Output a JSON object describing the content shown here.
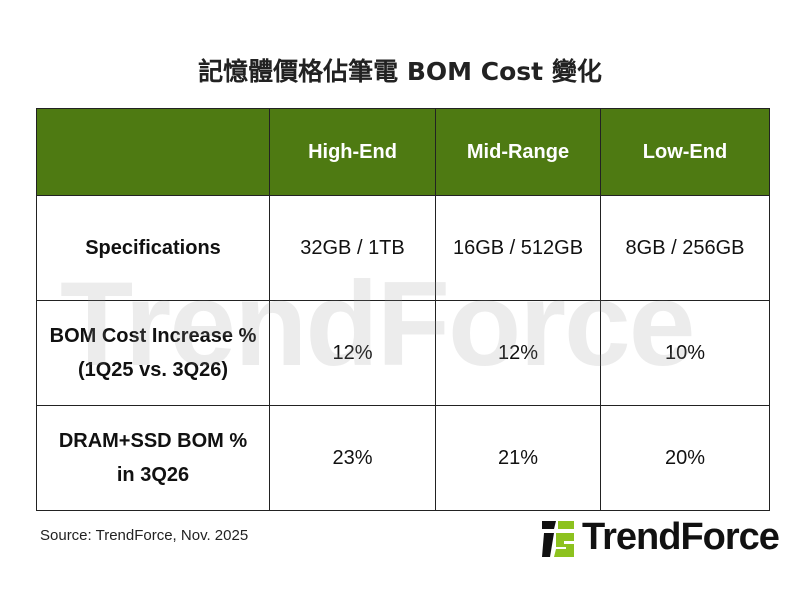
{
  "title": "記憶體價格佔筆電 BOM Cost 變化",
  "chart_data": {
    "type": "table",
    "title": "記憶體價格佔筆電 BOM Cost 變化",
    "columns": [
      "",
      "High-End",
      "Mid-Range",
      "Low-End"
    ],
    "rows": [
      {
        "label": [
          "Specifications"
        ],
        "values": [
          "32GB / 1TB",
          "16GB / 512GB",
          "8GB / 256GB"
        ]
      },
      {
        "label": [
          "BOM Cost Increase %",
          "(1Q25 vs. 3Q26)"
        ],
        "values": [
          "12%",
          "12%",
          "10%"
        ]
      },
      {
        "label": [
          "DRAM+SSD BOM %",
          "in 3Q26"
        ],
        "values": [
          "23%",
          "21%",
          "20%"
        ]
      }
    ],
    "header_color": "#4e7a12"
  },
  "source": "Source: TrendForce, Nov. 2025",
  "logo": {
    "text": "TrendForce",
    "colors": [
      "#111111",
      "#8dc21f"
    ]
  },
  "watermark": "TrendForce"
}
